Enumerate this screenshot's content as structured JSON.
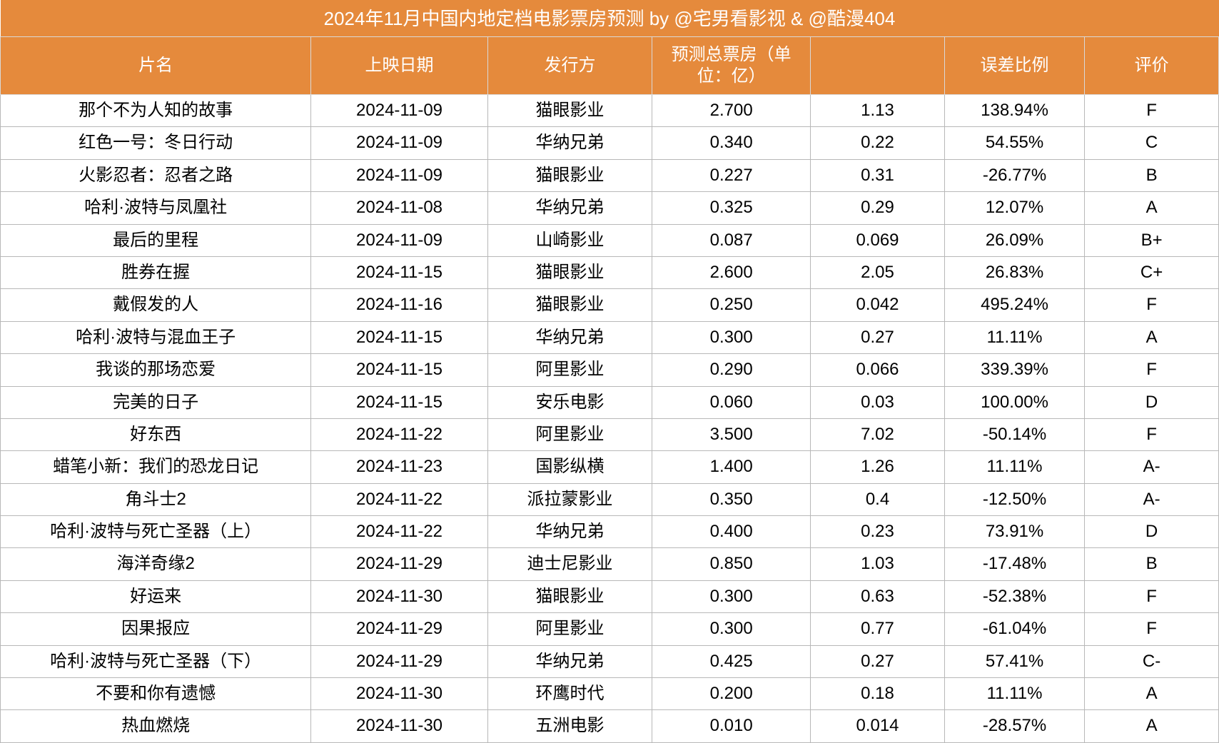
{
  "title": "2024年11月中国内地定档电影票房预测 by @宅男看影视 & @酷漫404",
  "colors": {
    "header_bg": "#e58a3c",
    "header_text": "#ffffff",
    "body_text": "#000000",
    "body_bg": "#ffffff",
    "border": "#b8b8b8"
  },
  "typography": {
    "title_fontsize": 26,
    "header_fontsize": 24,
    "body_fontsize": 24,
    "font_family": "Microsoft YaHei"
  },
  "table": {
    "type": "table",
    "col_widths_pct": [
      25.5,
      14.5,
      13.5,
      13.0,
      11.0,
      11.5,
      11.0
    ],
    "columns": [
      "片名",
      "上映日期",
      "发行方",
      "预测总票房（单位：亿）",
      "",
      "误差比例",
      "评价"
    ],
    "rows": [
      [
        "那个不为人知的故事",
        "2024-11-09",
        "猫眼影业",
        "2.700",
        "1.13",
        "138.94%",
        "F"
      ],
      [
        "红色一号：冬日行动",
        "2024-11-09",
        "华纳兄弟",
        "0.340",
        "0.22",
        "54.55%",
        "C"
      ],
      [
        "火影忍者：忍者之路",
        "2024-11-09",
        "猫眼影业",
        "0.227",
        "0.31",
        "-26.77%",
        "B"
      ],
      [
        "哈利·波特与凤凰社",
        "2024-11-08",
        "华纳兄弟",
        "0.325",
        "0.29",
        "12.07%",
        "A"
      ],
      [
        "最后的里程",
        "2024-11-09",
        "山崎影业",
        "0.087",
        "0.069",
        "26.09%",
        "B+"
      ],
      [
        "胜券在握",
        "2024-11-15",
        "猫眼影业",
        "2.600",
        "2.05",
        "26.83%",
        "C+"
      ],
      [
        "戴假发的人",
        "2024-11-16",
        "猫眼影业",
        "0.250",
        "0.042",
        "495.24%",
        "F"
      ],
      [
        "哈利·波特与混血王子",
        "2024-11-15",
        "华纳兄弟",
        "0.300",
        "0.27",
        "11.11%",
        "A"
      ],
      [
        "我谈的那场恋爱",
        "2024-11-15",
        "阿里影业",
        "0.290",
        "0.066",
        "339.39%",
        "F"
      ],
      [
        "完美的日子",
        "2024-11-15",
        "安乐电影",
        "0.060",
        "0.03",
        "100.00%",
        "D"
      ],
      [
        "好东西",
        "2024-11-22",
        "阿里影业",
        "3.500",
        "7.02",
        "-50.14%",
        "F"
      ],
      [
        "蜡笔小新：我们的恐龙日记",
        "2024-11-23",
        "国影纵横",
        "1.400",
        "1.26",
        "11.11%",
        "A-"
      ],
      [
        "角斗士2",
        "2024-11-22",
        "派拉蒙影业",
        "0.350",
        "0.4",
        "-12.50%",
        "A-"
      ],
      [
        "哈利·波特与死亡圣器（上）",
        "2024-11-22",
        "华纳兄弟",
        "0.400",
        "0.23",
        "73.91%",
        "D"
      ],
      [
        "海洋奇缘2",
        "2024-11-29",
        "迪士尼影业",
        "0.850",
        "1.03",
        "-17.48%",
        "B"
      ],
      [
        "好运来",
        "2024-11-30",
        "猫眼影业",
        "0.300",
        "0.63",
        "-52.38%",
        "F"
      ],
      [
        "因果报应",
        "2024-11-29",
        "阿里影业",
        "0.300",
        "0.77",
        "-61.04%",
        "F"
      ],
      [
        "哈利·波特与死亡圣器（下）",
        "2024-11-29",
        "华纳兄弟",
        "0.425",
        "0.27",
        "57.41%",
        "C-"
      ],
      [
        "不要和你有遗憾",
        "2024-11-30",
        "环鹰时代",
        "0.200",
        "0.18",
        "11.11%",
        "A"
      ],
      [
        "热血燃烧",
        "2024-11-30",
        "五洲电影",
        "0.010",
        "0.014",
        "-28.57%",
        "A"
      ]
    ]
  }
}
